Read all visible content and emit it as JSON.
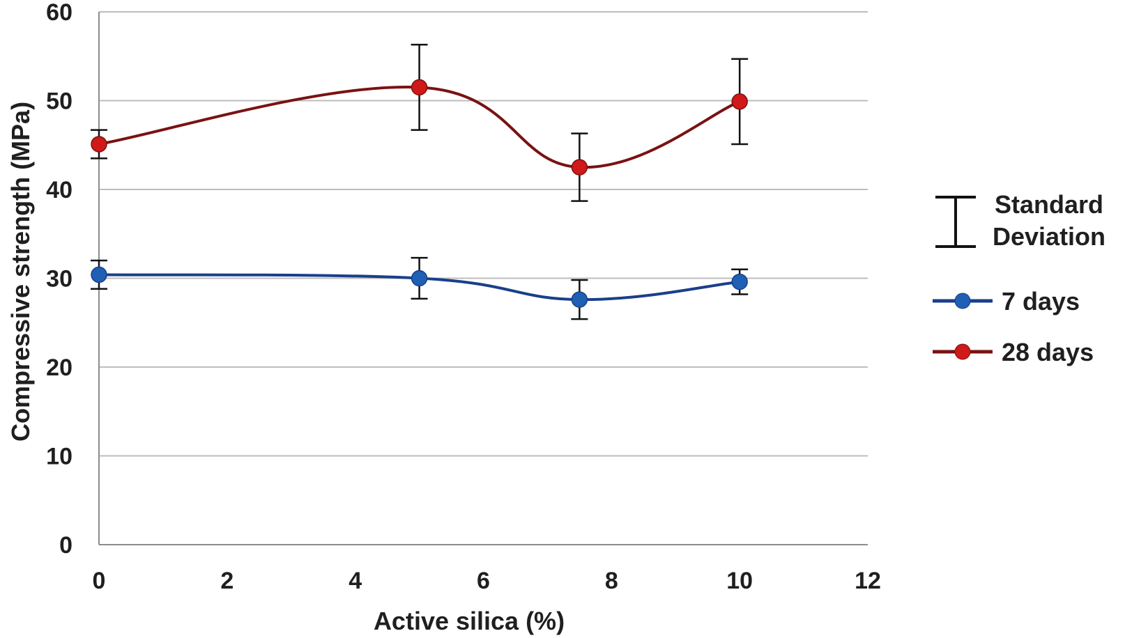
{
  "chart_data": {
    "type": "line",
    "title": "",
    "xlabel": "Active silica (%)",
    "ylabel": "Compressive strength (MPa)",
    "xlim": [
      0,
      12
    ],
    "ylim": [
      0,
      60
    ],
    "xticks": [
      0,
      2,
      4,
      6,
      8,
      10,
      12
    ],
    "yticks": [
      0,
      10,
      20,
      30,
      40,
      50,
      60
    ],
    "grid": "horizontal",
    "legend_position": "right",
    "legend_error_label_line1": "Standard",
    "legend_error_label_line2": "Deviation",
    "series": [
      {
        "name": "7 days",
        "color": "#1f5fb4",
        "line_color": "#1a3f8a",
        "x": [
          0,
          5,
          7.5,
          10
        ],
        "y": [
          30.4,
          30.0,
          27.6,
          29.6
        ],
        "error": [
          1.6,
          2.3,
          2.2,
          1.4
        ]
      },
      {
        "name": "28 days",
        "color": "#d01919",
        "line_color": "#7a1212",
        "x": [
          0,
          5,
          7.5,
          10
        ],
        "y": [
          45.1,
          51.5,
          42.5,
          49.9
        ],
        "error": [
          1.6,
          4.8,
          3.8,
          4.8
        ]
      }
    ]
  }
}
